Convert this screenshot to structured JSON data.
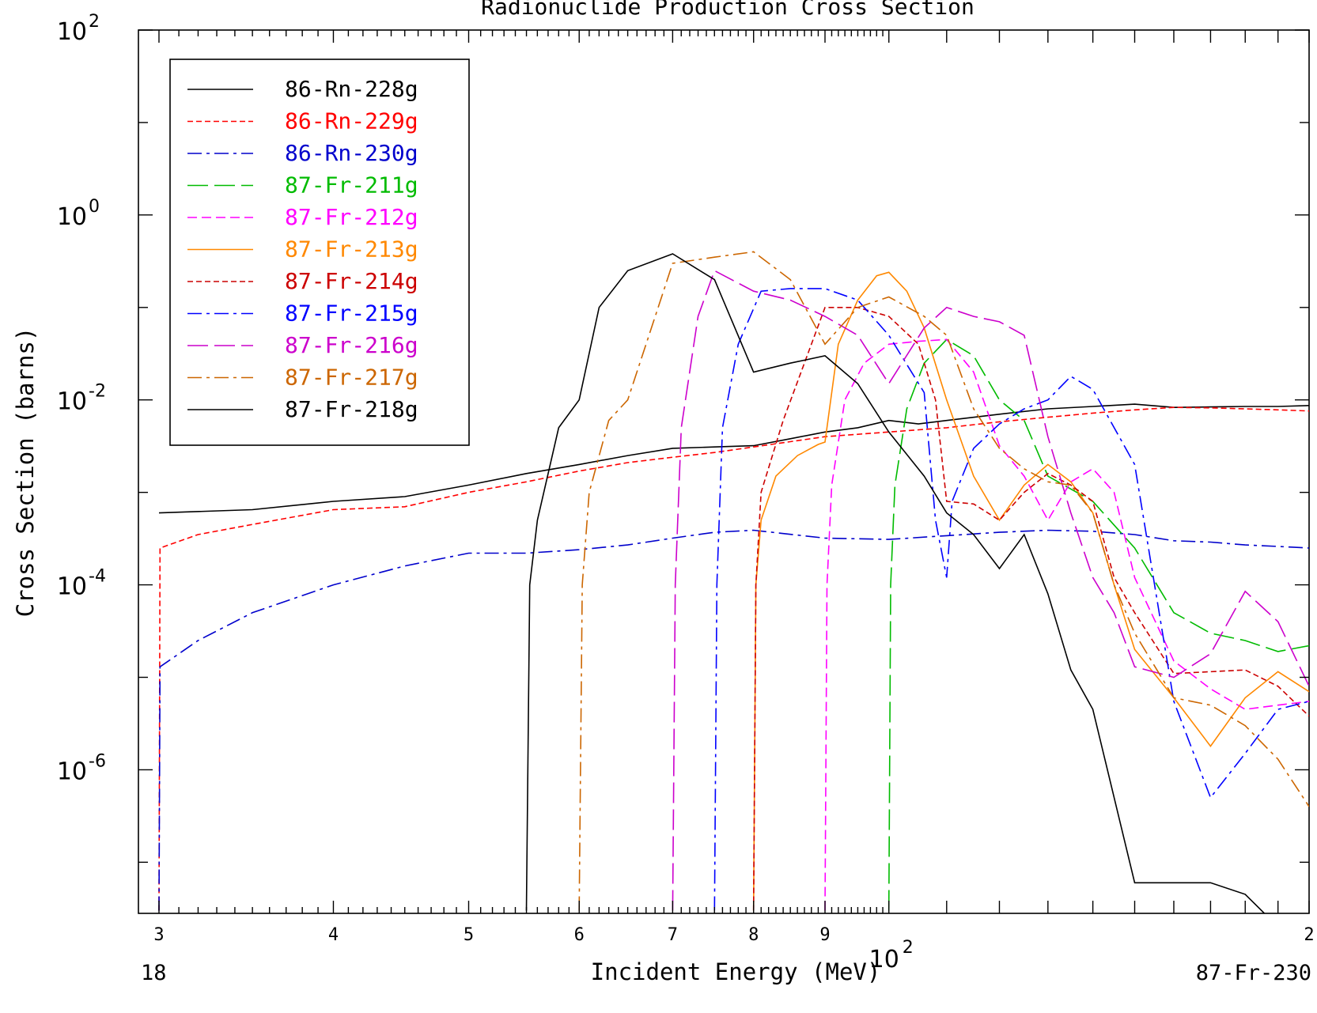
{
  "chart_data": {
    "type": "line",
    "title": "Radionuclide Production Cross Section",
    "xlabel": "Incident Energy (MeV)",
    "ylabel": "Cross Section (barns)",
    "x_scale": "log",
    "y_scale": "log",
    "xlim": [
      29,
      200
    ],
    "ylim": [
      2.8e-08,
      100
    ],
    "grid": false,
    "legend_position": "top-left",
    "footer_left": "18",
    "footer_right": "87-Fr-230",
    "x_ticks": [
      {
        "value": 30,
        "label": "3"
      },
      {
        "value": 40,
        "label": "4"
      },
      {
        "value": 50,
        "label": "5"
      },
      {
        "value": 60,
        "label": "6"
      },
      {
        "value": 70,
        "label": "7"
      },
      {
        "value": 80,
        "label": "8"
      },
      {
        "value": 90,
        "label": "9"
      },
      {
        "value": 200,
        "label": "2"
      }
    ],
    "x_decade_label": {
      "value": 100,
      "base": "10",
      "exp": "2"
    },
    "y_ticks": [
      {
        "value": 100,
        "base": "10",
        "exp": "2"
      },
      {
        "value": 1,
        "base": "10",
        "exp": "0"
      },
      {
        "value": 0.01,
        "base": "10",
        "exp": "-2"
      },
      {
        "value": 0.0001,
        "base": "10",
        "exp": "-4"
      },
      {
        "value": 1e-06,
        "base": "10",
        "exp": "-6"
      }
    ],
    "series": [
      {
        "name": "86-Rn-228g",
        "color": "#000000",
        "dash": "solid",
        "x": [
          30,
          35,
          40,
          45,
          50,
          55,
          60,
          65,
          70,
          75,
          80,
          85,
          90,
          95,
          100,
          105,
          110,
          120,
          130,
          140,
          150,
          160,
          170,
          180,
          190,
          200
        ],
        "y": [
          0.0006,
          0.00065,
          0.0008,
          0.0009,
          0.0012,
          0.0016,
          0.002,
          0.0025,
          0.003,
          0.0031,
          0.0032,
          0.0038,
          0.0045,
          0.005,
          0.006,
          0.0055,
          0.006,
          0.007,
          0.008,
          0.0085,
          0.009,
          0.0083,
          0.0084,
          0.0085,
          0.0085,
          0.0087
        ]
      },
      {
        "name": "86-Rn-229g",
        "color": "#ff0000",
        "dash": "short",
        "x": [
          30,
          30.05,
          32,
          35,
          40,
          45,
          50,
          55,
          60,
          65,
          70,
          75,
          80,
          90,
          100,
          110,
          120,
          130,
          140,
          150,
          160,
          170,
          180,
          190,
          200
        ],
        "y": [
          3e-08,
          0.00025,
          0.00035,
          0.00045,
          0.00065,
          0.0007,
          0.001,
          0.0013,
          0.0017,
          0.0021,
          0.0024,
          0.0027,
          0.0031,
          0.004,
          0.0045,
          0.005,
          0.0058,
          0.0065,
          0.0072,
          0.0078,
          0.0083,
          0.0082,
          0.008,
          0.0078,
          0.0076
        ]
      },
      {
        "name": "86-Rn-230g",
        "color": "#0000cc",
        "dash": "dashdot",
        "x": [
          30,
          30.05,
          32,
          35,
          40,
          45,
          50,
          55,
          60,
          65,
          70,
          75,
          80,
          90,
          100,
          110,
          120,
          130,
          140,
          150,
          160,
          170,
          180,
          190,
          200
        ],
        "y": [
          3e-08,
          1.3e-05,
          2.5e-05,
          5e-05,
          0.0001,
          0.00016,
          0.00022,
          0.00022,
          0.00024,
          0.00027,
          0.00032,
          0.00037,
          0.00039,
          0.00032,
          0.00031,
          0.00034,
          0.00037,
          0.00039,
          0.00038,
          0.00035,
          0.0003,
          0.00029,
          0.00027,
          0.00026,
          0.00025
        ]
      },
      {
        "name": "87-Fr-211g",
        "color": "#00bb00",
        "dash": "longdash",
        "x": [
          100,
          100.3,
          101,
          103,
          106,
          110,
          115,
          120,
          125,
          130,
          140,
          150,
          160,
          170,
          180,
          190,
          200
        ],
        "y": [
          3e-08,
          0.0001,
          0.0012,
          0.008,
          0.025,
          0.045,
          0.03,
          0.01,
          0.006,
          0.0015,
          0.0008,
          0.00025,
          5e-05,
          3e-05,
          2.5e-05,
          1.9e-05,
          2.2e-05
        ]
      },
      {
        "name": "87-Fr-212g",
        "color": "#ff00ff",
        "dash": "medium",
        "x": [
          90,
          90.3,
          91,
          93,
          96,
          100,
          105,
          110,
          115,
          120,
          125,
          130,
          135,
          140,
          145,
          150,
          160,
          170,
          180,
          190,
          200
        ],
        "y": [
          3e-08,
          0.0001,
          0.0012,
          0.01,
          0.025,
          0.04,
          0.043,
          0.045,
          0.02,
          0.0032,
          0.0015,
          0.0005,
          0.0013,
          0.0018,
          0.001,
          0.00012,
          1.5e-05,
          7.5e-06,
          4.5e-06,
          5e-06,
          5.5e-06
        ]
      },
      {
        "name": "87-Fr-213g",
        "color": "#ff8800",
        "dash": "solid",
        "x": [
          80,
          80.3,
          81,
          83,
          86,
          89,
          90,
          92,
          95,
          98,
          100,
          103,
          106,
          110,
          115,
          120,
          125,
          130,
          135,
          140,
          145,
          150,
          160,
          170,
          180,
          190,
          200
        ],
        "y": [
          3e-08,
          0.0001,
          0.0005,
          0.0015,
          0.0025,
          0.0033,
          0.0035,
          0.04,
          0.12,
          0.22,
          0.24,
          0.15,
          0.06,
          0.01,
          0.0015,
          0.0005,
          0.0012,
          0.002,
          0.0013,
          0.0006,
          0.0001,
          2e-05,
          6e-06,
          1.8e-06,
          6e-06,
          1.15e-05,
          7e-06
        ]
      },
      {
        "name": "87-Fr-214g",
        "color": "#cc0000",
        "dash": "short",
        "x": [
          80,
          80.3,
          81,
          84,
          90,
          95,
          100,
          105,
          108,
          110,
          115,
          120,
          125,
          130,
          135,
          140,
          145,
          150,
          160,
          170,
          180,
          190,
          200
        ],
        "y": [
          3e-08,
          0.0001,
          0.001,
          0.006,
          0.1,
          0.1,
          0.08,
          0.04,
          0.01,
          0.0008,
          0.00075,
          0.0005,
          0.001,
          0.0016,
          0.0012,
          0.0008,
          0.00012,
          5e-05,
          1.1e-05,
          1.15e-05,
          1.2e-05,
          8e-06,
          3.8e-06
        ]
      },
      {
        "name": "87-Fr-215g",
        "color": "#0000ff",
        "dash": "dashdot",
        "x": [
          75,
          75.3,
          76,
          78,
          81,
          85,
          90,
          95,
          100,
          106,
          108,
          110,
          111,
          115,
          120,
          125,
          130,
          135,
          140,
          150,
          160,
          170,
          180,
          190,
          200
        ],
        "y": [
          3e-08,
          0.0001,
          0.005,
          0.04,
          0.15,
          0.16,
          0.16,
          0.12,
          0.05,
          0.012,
          0.0005,
          0.00012,
          0.0008,
          0.003,
          0.0055,
          0.008,
          0.01,
          0.018,
          0.013,
          0.002,
          5.5e-06,
          5e-07,
          1.5e-06,
          4.5e-06,
          5.5e-06
        ]
      },
      {
        "name": "87-Fr-216g",
        "color": "#cc00cc",
        "dash": "longdash",
        "x": [
          70,
          70.3,
          71,
          73,
          75,
          80,
          85,
          90,
          95,
          100,
          106,
          110,
          115,
          120,
          125,
          130,
          135,
          140,
          145,
          150,
          160,
          170,
          180,
          190,
          200
        ],
        "y": [
          3e-08,
          0.0001,
          0.005,
          0.08,
          0.25,
          0.15,
          0.12,
          0.08,
          0.05,
          0.015,
          0.06,
          0.1,
          0.08,
          0.07,
          0.05,
          0.004,
          0.0006,
          0.00012,
          5e-05,
          1.3e-05,
          1e-05,
          1.8e-05,
          8.5e-05,
          4e-05,
          8e-06
        ]
      },
      {
        "name": "87-Fr-217g",
        "color": "#cc6600",
        "dash": "dashdot",
        "x": [
          60,
          60.3,
          61,
          63,
          65,
          70,
          75,
          80,
          85,
          90,
          95,
          100,
          106,
          110,
          115,
          120,
          125,
          130,
          135,
          140,
          145,
          150,
          160,
          170,
          180,
          190,
          200
        ],
        "y": [
          3e-08,
          0.0001,
          0.001,
          0.006,
          0.01,
          0.3,
          0.35,
          0.4,
          0.2,
          0.04,
          0.1,
          0.13,
          0.08,
          0.05,
          0.008,
          0.003,
          0.0018,
          0.0013,
          0.0012,
          0.0006,
          0.0001,
          3e-05,
          6e-06,
          5e-06,
          3e-06,
          1.3e-06,
          4e-07
        ]
      },
      {
        "name": "87-Fr-218g",
        "color": "#000000",
        "dash": "solid",
        "x": [
          55,
          55.3,
          56,
          58,
          60,
          62,
          65,
          70,
          75,
          80,
          85,
          90,
          95,
          100,
          106,
          110,
          115,
          120,
          125,
          130,
          135,
          140,
          150,
          160,
          170,
          180,
          190,
          200
        ],
        "y": [
          3e-08,
          0.0001,
          0.0005,
          0.005,
          0.01,
          0.1,
          0.25,
          0.38,
          0.2,
          0.02,
          0.025,
          0.03,
          0.015,
          0.0045,
          0.0015,
          0.0006,
          0.00035,
          0.00015,
          0.00035,
          8e-05,
          1.2e-05,
          4.5e-06,
          6e-08,
          6e-08,
          6e-08,
          4.5e-08,
          2e-08,
          1.05e-08
        ]
      }
    ]
  }
}
